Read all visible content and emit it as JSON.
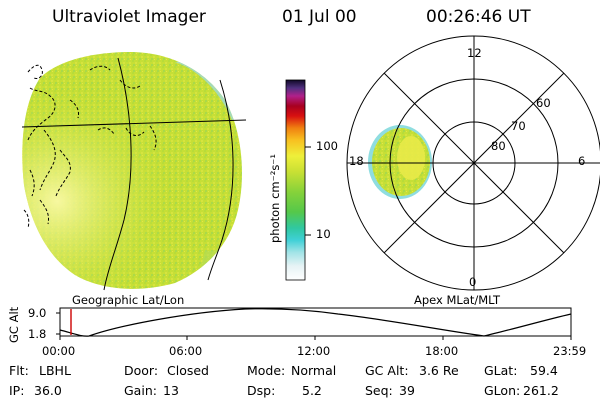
{
  "header": {
    "title": "Ultraviolet Imager",
    "date": "01 Jul 00",
    "time": "00:26:46 UT"
  },
  "panels": {
    "left_caption": "Geographic Lat/Lon",
    "right_caption": "Apex MLat/MLT"
  },
  "colorbar": {
    "title": "photon cm⁻²s⁻¹",
    "ticks": [
      "100",
      "10"
    ],
    "scale": "log"
  },
  "polar": {
    "mlt_labels": [
      "12",
      "18",
      "6",
      "0"
    ],
    "mlat_labels": [
      "60",
      "70",
      "80"
    ]
  },
  "altitude_strip": {
    "axis_label": "GC Alt",
    "y_ticks": [
      "9.0",
      "1.8"
    ],
    "x_ticks": [
      "00:00",
      "06:00",
      "12:00",
      "18:00",
      "23:59"
    ]
  },
  "status": {
    "filter_label": "Flt:",
    "filter_value": "LBHL",
    "ip_label": "IP:",
    "ip_value": "36.0",
    "door_label": "Door:",
    "door_value": "Closed",
    "gain_label": "Gain:",
    "gain_value": "13",
    "mode_label": "Mode:",
    "mode_value": "Normal",
    "dsp_label": "Dsp:",
    "dsp_value": "5.2",
    "gcalt_label": "GC Alt:",
    "gcalt_value": "3.6 Re",
    "seq_label": "Seq:",
    "seq_value": "39",
    "glat_label": "GLat:",
    "glat_value": "59.4",
    "glon_label": "GLon:",
    "glon_value": "261.2"
  },
  "colors": {
    "image_main": "#c8e034",
    "image_yellow": "#e8ea48",
    "image_cyan": "#8fdde0",
    "marker_red": "#cc0000"
  }
}
